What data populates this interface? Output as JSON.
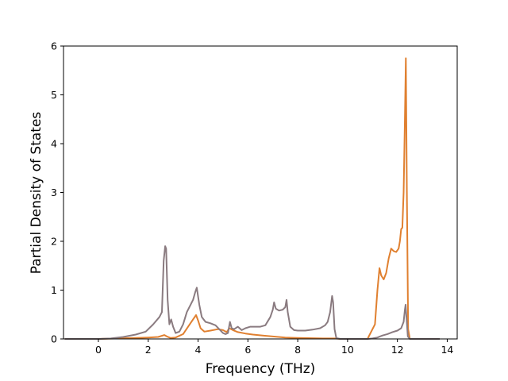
{
  "chart_data": {
    "type": "line",
    "title": "",
    "xlabel": "Frequency (THz)",
    "ylabel": "Partial Density of States",
    "xlim": [
      -1.4,
      14.4
    ],
    "ylim": [
      0,
      6
    ],
    "xticks": [
      0,
      2,
      4,
      6,
      8,
      10,
      12,
      14
    ],
    "yticks": [
      0,
      1,
      2,
      3,
      4,
      5,
      6
    ],
    "grid": false,
    "legend": "none",
    "series": [
      {
        "color": "#e08030",
        "points": [
          [
            -1.35,
            0
          ],
          [
            0.0,
            0
          ],
          [
            0.8,
            0.01
          ],
          [
            1.5,
            0.02
          ],
          [
            2.0,
            0.03
          ],
          [
            2.4,
            0.04
          ],
          [
            2.65,
            0.08
          ],
          [
            2.75,
            0.05
          ],
          [
            2.9,
            0.02
          ],
          [
            3.1,
            0.03
          ],
          [
            3.4,
            0.1
          ],
          [
            3.6,
            0.25
          ],
          [
            3.8,
            0.4
          ],
          [
            3.92,
            0.49
          ],
          [
            4.0,
            0.38
          ],
          [
            4.1,
            0.22
          ],
          [
            4.25,
            0.15
          ],
          [
            4.5,
            0.17
          ],
          [
            4.8,
            0.2
          ],
          [
            5.0,
            0.18
          ],
          [
            5.15,
            0.14
          ],
          [
            5.25,
            0.22
          ],
          [
            5.4,
            0.18
          ],
          [
            5.6,
            0.14
          ],
          [
            5.9,
            0.11
          ],
          [
            6.2,
            0.09
          ],
          [
            6.6,
            0.07
          ],
          [
            7.0,
            0.05
          ],
          [
            7.5,
            0.03
          ],
          [
            8.0,
            0.02
          ],
          [
            9.0,
            0.01
          ],
          [
            9.5,
            0.01
          ],
          [
            9.7,
            0
          ],
          [
            10.8,
            0
          ],
          [
            11.1,
            0.3
          ],
          [
            11.2,
            1.0
          ],
          [
            11.28,
            1.45
          ],
          [
            11.35,
            1.3
          ],
          [
            11.45,
            1.22
          ],
          [
            11.55,
            1.35
          ],
          [
            11.65,
            1.65
          ],
          [
            11.75,
            1.85
          ],
          [
            11.85,
            1.8
          ],
          [
            11.95,
            1.78
          ],
          [
            12.05,
            1.85
          ],
          [
            12.1,
            2.0
          ],
          [
            12.15,
            2.25
          ],
          [
            12.2,
            2.28
          ],
          [
            12.25,
            3.0
          ],
          [
            12.3,
            4.5
          ],
          [
            12.34,
            5.75
          ],
          [
            12.38,
            3.0
          ],
          [
            12.43,
            0.2
          ],
          [
            12.5,
            0
          ],
          [
            13.7,
            0
          ]
        ]
      },
      {
        "color": "#8a7b80",
        "points": [
          [
            -1.35,
            0
          ],
          [
            0.0,
            0
          ],
          [
            0.5,
            0.01
          ],
          [
            1.0,
            0.04
          ],
          [
            1.5,
            0.09
          ],
          [
            1.9,
            0.15
          ],
          [
            2.2,
            0.3
          ],
          [
            2.45,
            0.45
          ],
          [
            2.55,
            0.55
          ],
          [
            2.62,
            1.6
          ],
          [
            2.68,
            1.9
          ],
          [
            2.72,
            1.85
          ],
          [
            2.78,
            0.8
          ],
          [
            2.85,
            0.3
          ],
          [
            2.92,
            0.4
          ],
          [
            3.0,
            0.25
          ],
          [
            3.1,
            0.12
          ],
          [
            3.25,
            0.15
          ],
          [
            3.4,
            0.3
          ],
          [
            3.55,
            0.55
          ],
          [
            3.7,
            0.7
          ],
          [
            3.8,
            0.8
          ],
          [
            3.88,
            0.95
          ],
          [
            3.95,
            1.05
          ],
          [
            4.05,
            0.7
          ],
          [
            4.15,
            0.45
          ],
          [
            4.3,
            0.35
          ],
          [
            4.5,
            0.32
          ],
          [
            4.7,
            0.28
          ],
          [
            4.85,
            0.2
          ],
          [
            5.0,
            0.12
          ],
          [
            5.1,
            0.1
          ],
          [
            5.2,
            0.12
          ],
          [
            5.28,
            0.35
          ],
          [
            5.35,
            0.22
          ],
          [
            5.45,
            0.2
          ],
          [
            5.6,
            0.25
          ],
          [
            5.75,
            0.18
          ],
          [
            5.9,
            0.22
          ],
          [
            6.1,
            0.25
          ],
          [
            6.3,
            0.25
          ],
          [
            6.5,
            0.25
          ],
          [
            6.7,
            0.28
          ],
          [
            6.9,
            0.45
          ],
          [
            7.0,
            0.6
          ],
          [
            7.05,
            0.75
          ],
          [
            7.12,
            0.62
          ],
          [
            7.25,
            0.58
          ],
          [
            7.4,
            0.6
          ],
          [
            7.5,
            0.65
          ],
          [
            7.55,
            0.8
          ],
          [
            7.6,
            0.55
          ],
          [
            7.7,
            0.25
          ],
          [
            7.85,
            0.18
          ],
          [
            8.0,
            0.17
          ],
          [
            8.3,
            0.17
          ],
          [
            8.6,
            0.19
          ],
          [
            8.9,
            0.22
          ],
          [
            9.1,
            0.28
          ],
          [
            9.2,
            0.35
          ],
          [
            9.3,
            0.55
          ],
          [
            9.38,
            0.88
          ],
          [
            9.42,
            0.75
          ],
          [
            9.48,
            0.2
          ],
          [
            9.55,
            0.02
          ],
          [
            9.7,
            0
          ],
          [
            10.8,
            0
          ],
          [
            11.0,
            0.01
          ],
          [
            11.2,
            0.03
          ],
          [
            11.4,
            0.07
          ],
          [
            11.6,
            0.1
          ],
          [
            11.8,
            0.14
          ],
          [
            12.0,
            0.17
          ],
          [
            12.15,
            0.22
          ],
          [
            12.25,
            0.35
          ],
          [
            12.3,
            0.6
          ],
          [
            12.33,
            0.7
          ],
          [
            12.37,
            0.4
          ],
          [
            12.42,
            0.05
          ],
          [
            12.5,
            0
          ],
          [
            13.7,
            0
          ]
        ]
      }
    ]
  }
}
